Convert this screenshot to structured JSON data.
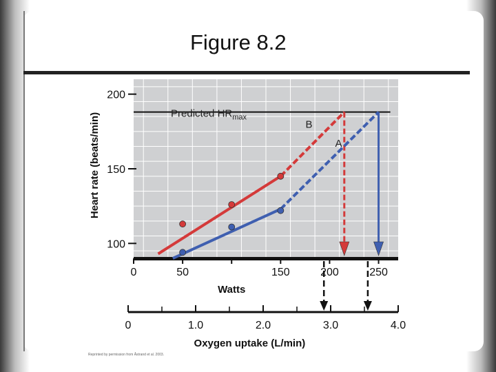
{
  "title": "Figure 8.2",
  "credit": "Reprinted by permission from Åstrand et al. 2003.",
  "colors": {
    "plot_bg": "#cfd0d2",
    "grid": "#ffffff",
    "series_b": "#d43a3a",
    "series_a": "#3f5fb0",
    "axis": "#111111"
  },
  "chart_data": {
    "type": "line",
    "title": "",
    "xlabel": "Watts",
    "ylabel": "Heart rate (beats/min)",
    "xlim": [
      0,
      270
    ],
    "ylim": [
      90,
      210
    ],
    "x_ticks": [
      0,
      50,
      100,
      150,
      200,
      250
    ],
    "x_tick_labels": [
      "0",
      "50",
      "",
      "150",
      "200",
      "250"
    ],
    "y_ticks": [
      100,
      150,
      200
    ],
    "y_tick_labels": [
      "100",
      "150",
      "200"
    ],
    "grid": true,
    "hr_max": 188,
    "hr_max_label": "Predicted HR",
    "hr_max_label_sub": "max",
    "series": [
      {
        "name": "B",
        "points": [
          {
            "x": 50,
            "y": 113
          },
          {
            "x": 100,
            "y": 126
          },
          {
            "x": 150,
            "y": 145
          }
        ],
        "fit_solid": [
          [
            25,
            93
          ],
          [
            150,
            145
          ]
        ],
        "fit_dashed": [
          [
            150,
            145
          ],
          [
            215,
            188
          ]
        ],
        "drop_x": 215
      },
      {
        "name": "A",
        "points": [
          {
            "x": 50,
            "y": 94
          },
          {
            "x": 100,
            "y": 111
          },
          {
            "x": 150,
            "y": 122
          }
        ],
        "fit_solid": [
          [
            40,
            90
          ],
          [
            150,
            123
          ]
        ],
        "fit_dashed": [
          [
            150,
            123
          ],
          [
            250,
            188
          ]
        ],
        "drop_x": 250
      }
    ],
    "secondary_axis": {
      "label": "Oxygen uptake (L/min)",
      "lim": [
        0,
        4.0
      ],
      "ticks": [
        0,
        1.0,
        2.0,
        3.0,
        4.0
      ],
      "tick_labels": [
        "0",
        "1.0",
        "2.0",
        "3.0",
        "4.0"
      ],
      "minor_ticks": [
        0.5,
        1.5,
        2.5,
        3.5
      ],
      "markers": [
        2.9,
        3.55
      ]
    }
  }
}
